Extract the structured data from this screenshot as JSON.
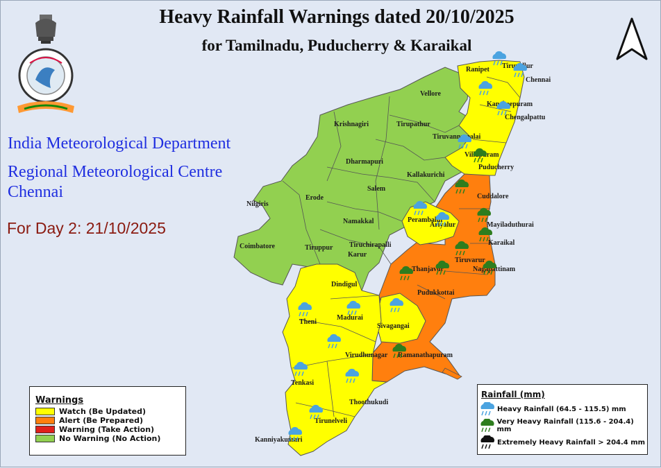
{
  "title": "Heavy Rainfall Warnings dated 20/10/2025",
  "subtitle": "for Tamilnadu, Puducherry & Karaikal",
  "org_line1": "India Meteorological Department",
  "org_line2": "Regional Meteorological Centre",
  "org_line3": "Chennai",
  "day_label": "For Day 2: 21/10/2025",
  "colors": {
    "watch": "#ffff00",
    "alert": "#ff7f0e",
    "warning": "#e0201b",
    "no_warning": "#92d050",
    "heavy_icon": "#4ba3e0",
    "very_heavy_icon": "#2e7d1e",
    "extreme_icon": "#111111",
    "background": "#e1e8f4"
  },
  "warnings_legend": {
    "title": "Warnings",
    "items": [
      {
        "label": "Watch (Be Updated)",
        "color": "#ffff00"
      },
      {
        "label": "Alert (Be Prepared)",
        "color": "#ff7f0e"
      },
      {
        "label": "Warning (Take Action)",
        "color": "#e0201b"
      },
      {
        "label": "No Warning (No Action)",
        "color": "#92d050"
      }
    ]
  },
  "rainfall_legend": {
    "title": "Rainfall (mm)",
    "items": [
      {
        "label": "Heavy Rainfall (64.5 - 115.5) mm",
        "icon": "rain-cloud-blue-icon"
      },
      {
        "label": "Very Heavy Rainfall (115.6 - 204.4) mm",
        "icon": "rain-cloud-green-icon"
      },
      {
        "label": "Extremely Heavy Rainfall > 204.4 mm",
        "icon": "rain-cloud-black-icon"
      }
    ]
  },
  "districts": [
    {
      "name": "Tiruvallur",
      "category": "watch",
      "rain": "heavy"
    },
    {
      "name": "Chennai",
      "category": "watch",
      "rain": "heavy"
    },
    {
      "name": "Ranipet",
      "category": "watch",
      "rain": "heavy"
    },
    {
      "name": "Vellore",
      "category": "no_warning",
      "rain": "none"
    },
    {
      "name": "Kancheepuram",
      "category": "watch",
      "rain": "heavy"
    },
    {
      "name": "Chengalpattu",
      "category": "watch",
      "rain": "heavy"
    },
    {
      "name": "Krishnagiri",
      "category": "no_warning",
      "rain": "none"
    },
    {
      "name": "Tirupathur",
      "category": "no_warning",
      "rain": "none"
    },
    {
      "name": "Tiruvannamalai",
      "category": "watch",
      "rain": "none"
    },
    {
      "name": "Villupuram",
      "category": "watch",
      "rain": "heavy"
    },
    {
      "name": "Puducherry",
      "category": "watch",
      "rain": "very_heavy"
    },
    {
      "name": "Dharmapuri",
      "category": "no_warning",
      "rain": "none"
    },
    {
      "name": "Kallakurichi",
      "category": "no_warning",
      "rain": "none"
    },
    {
      "name": "Salem",
      "category": "no_warning",
      "rain": "none"
    },
    {
      "name": "Nilgiris",
      "category": "no_warning",
      "rain": "none"
    },
    {
      "name": "Erode",
      "category": "no_warning",
      "rain": "none"
    },
    {
      "name": "Cuddalore",
      "category": "alert",
      "rain": "very_heavy"
    },
    {
      "name": "Namakkal",
      "category": "no_warning",
      "rain": "none"
    },
    {
      "name": "Perambalur",
      "category": "watch",
      "rain": "heavy"
    },
    {
      "name": "Ariyalur",
      "category": "watch",
      "rain": "heavy"
    },
    {
      "name": "Mayiladuthurai",
      "category": "alert",
      "rain": "very_heavy"
    },
    {
      "name": "Coimbatore",
      "category": "no_warning",
      "rain": "none"
    },
    {
      "name": "Tiruppur",
      "category": "no_warning",
      "rain": "none"
    },
    {
      "name": "Tiruchirapalli",
      "category": "no_warning",
      "rain": "none"
    },
    {
      "name": "Karur",
      "category": "no_warning",
      "rain": "none"
    },
    {
      "name": "Karaikal",
      "category": "alert",
      "rain": "very_heavy"
    },
    {
      "name": "Tiruvarur",
      "category": "alert",
      "rain": "very_heavy"
    },
    {
      "name": "Nagapattinam",
      "category": "alert",
      "rain": "very_heavy"
    },
    {
      "name": "Thanjavur",
      "category": "alert",
      "rain": "very_heavy"
    },
    {
      "name": "Dindigul",
      "category": "watch",
      "rain": "none"
    },
    {
      "name": "Pudukkottai",
      "category": "alert",
      "rain": "very_heavy"
    },
    {
      "name": "Theni",
      "category": "watch",
      "rain": "heavy"
    },
    {
      "name": "Madurai",
      "category": "watch",
      "rain": "heavy"
    },
    {
      "name": "Sivagangai",
      "category": "watch",
      "rain": "heavy"
    },
    {
      "name": "Virudhunagar",
      "category": "watch",
      "rain": "heavy"
    },
    {
      "name": "Ramanathapuram",
      "category": "alert",
      "rain": "very_heavy"
    },
    {
      "name": "Tenkasi",
      "category": "watch",
      "rain": "heavy"
    },
    {
      "name": "Thoothukudi",
      "category": "watch",
      "rain": "heavy"
    },
    {
      "name": "Tirunelveli",
      "category": "watch",
      "rain": "heavy"
    },
    {
      "name": "Kanniyakumari",
      "category": "watch",
      "rain": "heavy"
    }
  ]
}
